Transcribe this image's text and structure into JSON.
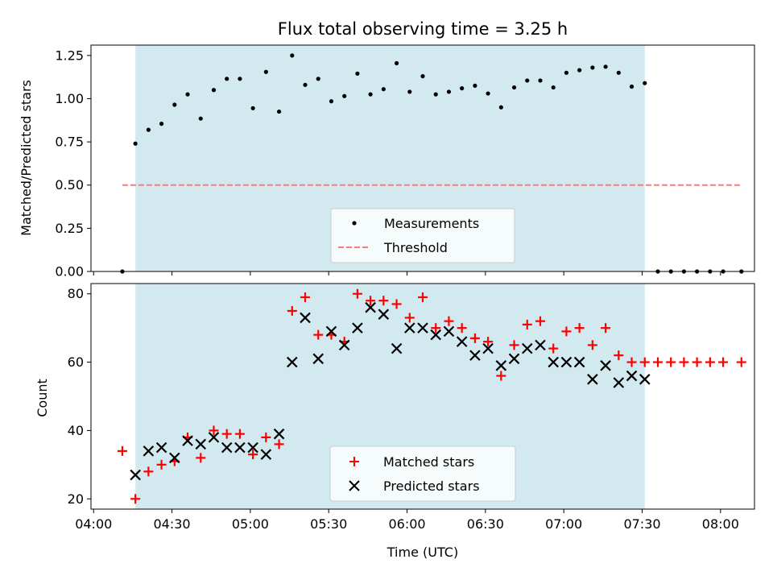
{
  "title": "Flux total observing time = 3.25 h",
  "top_axes": {
    "ylabel": "Matched/Predicted stars",
    "ytick_labels": [
      "0.00",
      "0.25",
      "0.50",
      "0.75",
      "1.00",
      "1.25"
    ],
    "legend": {
      "measurements": "Measurements",
      "threshold": "Threshold"
    }
  },
  "bottom_axes": {
    "ylabel": "Count",
    "xlabel": "Time (UTC)",
    "ytick_labels": [
      "20",
      "40",
      "60",
      "80"
    ],
    "xtick_labels": [
      "04:00",
      "04:30",
      "05:00",
      "05:30",
      "06:00",
      "06:30",
      "07:00",
      "07:30",
      "08:00"
    ],
    "legend": {
      "matched": "Matched stars",
      "predicted": "Predicted stars"
    }
  },
  "colors": {
    "shaded_span": "#d3e9f0",
    "threshold": "#f08080",
    "matched": "#ff0000",
    "predicted": "#000000",
    "measurements": "#000000"
  },
  "chart_data": [
    {
      "type": "scatter",
      "title": "Flux total observing time = 3.25 h",
      "ylabel": "Matched/Predicted stars",
      "xlabel": "",
      "x_unit": "time (UTC)",
      "xlim": [
        "03:59",
        "08:13"
      ],
      "ylim": [
        0,
        1.31
      ],
      "grid": false,
      "legend_position": "lower center",
      "observing_span": [
        "04:16",
        "07:31"
      ],
      "threshold": {
        "name": "Threshold",
        "value": 0.5,
        "x_range": [
          "04:11",
          "08:08"
        ],
        "style": "dashed"
      },
      "series": [
        {
          "name": "Measurements",
          "marker": "dot",
          "x": [
            "04:11",
            "04:16",
            "04:21",
            "04:26",
            "04:31",
            "04:36",
            "04:41",
            "04:46",
            "04:51",
            "04:56",
            "05:01",
            "05:06",
            "05:11",
            "05:16",
            "05:21",
            "05:26",
            "05:31",
            "05:36",
            "05:41",
            "05:46",
            "05:51",
            "05:56",
            "06:01",
            "06:06",
            "06:11",
            "06:16",
            "06:21",
            "06:26",
            "06:31",
            "06:36",
            "06:41",
            "06:46",
            "06:51",
            "06:56",
            "07:01",
            "07:06",
            "07:11",
            "07:16",
            "07:21",
            "07:26",
            "07:31",
            "07:36",
            "07:41",
            "07:46",
            "07:51",
            "07:56",
            "08:01",
            "08:08"
          ],
          "y": [
            0.0,
            0.74,
            0.82,
            0.855,
            0.965,
            1.025,
            0.885,
            1.05,
            1.115,
            1.115,
            0.945,
            1.155,
            0.925,
            1.25,
            1.08,
            1.115,
            0.985,
            1.015,
            1.145,
            1.025,
            1.055,
            1.205,
            1.04,
            1.13,
            1.025,
            1.04,
            1.06,
            1.075,
            1.03,
            0.95,
            1.065,
            1.105,
            1.105,
            1.065,
            1.15,
            1.165,
            1.18,
            1.185,
            1.15,
            1.07,
            1.09,
            0.0,
            0.0,
            0.0,
            0.0,
            0.0,
            0.0,
            0.0
          ]
        }
      ]
    },
    {
      "type": "scatter",
      "title": "",
      "ylabel": "Count",
      "xlabel": "Time (UTC)",
      "x_unit": "time (UTC)",
      "xlim": [
        "03:59",
        "08:13"
      ],
      "ylim": [
        17,
        83
      ],
      "grid": false,
      "legend_position": "lower center",
      "observing_span": [
        "04:16",
        "07:31"
      ],
      "series": [
        {
          "name": "Matched stars",
          "marker": "plus",
          "x": [
            "04:11",
            "04:16",
            "04:21",
            "04:26",
            "04:31",
            "04:36",
            "04:41",
            "04:46",
            "04:51",
            "04:56",
            "05:01",
            "05:06",
            "05:11",
            "05:16",
            "05:21",
            "05:26",
            "05:31",
            "05:36",
            "05:41",
            "05:46",
            "05:51",
            "05:56",
            "06:01",
            "06:06",
            "06:11",
            "06:16",
            "06:21",
            "06:26",
            "06:31",
            "06:36",
            "06:41",
            "06:46",
            "06:51",
            "06:56",
            "07:01",
            "07:06",
            "07:11",
            "07:16",
            "07:21",
            "07:26",
            "07:31",
            "07:36",
            "07:41",
            "07:46",
            "07:51",
            "07:56",
            "08:01",
            "08:08"
          ],
          "y": [
            34,
            20,
            28,
            30,
            31,
            38,
            32,
            40,
            39,
            39,
            33,
            38,
            36,
            75,
            79,
            68,
            68,
            66,
            80,
            78,
            78,
            77,
            73,
            79,
            70,
            72,
            70,
            67,
            66,
            56,
            65,
            71,
            72,
            64,
            69,
            70,
            65,
            70,
            62,
            60,
            60,
            60,
            60,
            60,
            60,
            60,
            60,
            60
          ]
        },
        {
          "name": "Predicted stars",
          "marker": "x",
          "x": [
            "04:16",
            "04:21",
            "04:26",
            "04:31",
            "04:36",
            "04:41",
            "04:46",
            "04:51",
            "04:56",
            "05:01",
            "05:06",
            "05:11",
            "05:16",
            "05:21",
            "05:26",
            "05:31",
            "05:36",
            "05:41",
            "05:46",
            "05:51",
            "05:56",
            "06:01",
            "06:06",
            "06:11",
            "06:16",
            "06:21",
            "06:26",
            "06:31",
            "06:36",
            "06:41",
            "06:46",
            "06:51",
            "06:56",
            "07:01",
            "07:06",
            "07:11",
            "07:16",
            "07:21",
            "07:26",
            "07:31"
          ],
          "y": [
            27,
            34,
            35,
            32,
            37,
            36,
            38,
            35,
            35,
            35,
            33,
            39,
            60,
            73,
            61,
            69,
            65,
            70,
            76,
            74,
            64,
            70,
            70,
            68,
            69,
            66,
            62,
            64,
            59,
            61,
            64,
            65,
            60,
            60,
            60,
            55,
            59,
            54,
            56,
            55
          ]
        }
      ]
    }
  ]
}
